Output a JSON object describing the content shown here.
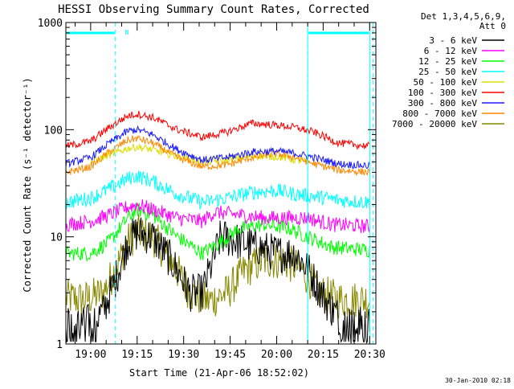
{
  "footer": {
    "timestamp": "30-Jan-2010 02:18"
  },
  "legend": {
    "header": [
      "Det 1,3,4,5,6,9,",
      "Att 0"
    ],
    "placement": "top-right, outside plot"
  },
  "chart_data": {
    "type": "line",
    "title": "HESSI Observing Summary Count Rates, Corrected",
    "xlabel": "Start Time (21-Apr-06 18:52:02)",
    "ylabel": "Corrected Count Rate (s⁻¹ detector⁻¹)",
    "yscale": "log",
    "ylim": [
      1,
      1000
    ],
    "xlim": [
      "18:52",
      "20:32"
    ],
    "x_ticks": [
      "19:00",
      "19:15",
      "19:30",
      "19:45",
      "20:00",
      "20:15",
      "20:30"
    ],
    "x_minor_minutes": 5,
    "y_ticks": [
      {
        "value": 1,
        "label": "1"
      },
      {
        "value": 10,
        "label": "10"
      },
      {
        "value": 100,
        "label": "100"
      },
      {
        "value": 1000,
        "label": "1000"
      }
    ],
    "grid": false,
    "night_markers": [
      {
        "start": "18:52",
        "end": "19:08"
      },
      {
        "start": "20:10",
        "end": "20:30"
      }
    ],
    "night_edge_color": "#00ffff",
    "saa_label": "N",
    "saa_label_time": "19:10",
    "series": [
      {
        "name": "3 - 6 keV",
        "color": "#000000",
        "x": [
          "18:52",
          "18:58",
          "19:04",
          "19:08",
          "19:12",
          "19:15",
          "19:20",
          "19:26",
          "19:32",
          "19:36",
          "19:42",
          "19:48",
          "19:54",
          "20:00",
          "20:06",
          "20:10",
          "20:16",
          "20:22",
          "20:30"
        ],
        "y": [
          1.5,
          1.5,
          2,
          4,
          9,
          11,
          10,
          6,
          3,
          3,
          10,
          9,
          8,
          7,
          7,
          5,
          2.5,
          1.5,
          1.5
        ]
      },
      {
        "name": "6 - 12 keV",
        "color": "#ff00ff",
        "x": [
          "18:52",
          "19:00",
          "19:06",
          "19:12",
          "19:15",
          "19:20",
          "19:28",
          "19:36",
          "19:40",
          "19:48",
          "19:56",
          "20:04",
          "20:10",
          "20:18",
          "20:30"
        ],
        "y": [
          13,
          14,
          16,
          19,
          20,
          18,
          15,
          14,
          17,
          16,
          15,
          15,
          15,
          13,
          12.5
        ]
      },
      {
        "name": "12 - 25 keV",
        "color": "#00ff00",
        "x": [
          "18:52",
          "19:00",
          "19:06",
          "19:12",
          "19:15",
          "19:20",
          "19:28",
          "19:36",
          "19:42",
          "19:48",
          "19:56",
          "20:04",
          "20:10",
          "20:18",
          "20:30"
        ],
        "y": [
          7,
          7,
          9,
          15,
          18,
          16,
          10,
          7,
          9,
          12,
          13,
          12,
          10,
          8,
          7.5
        ]
      },
      {
        "name": "25 - 50 keV",
        "color": "#00ffff",
        "x": [
          "18:52",
          "19:00",
          "19:06",
          "19:12",
          "19:15",
          "19:20",
          "19:28",
          "19:36",
          "19:44",
          "19:52",
          "20:00",
          "20:06",
          "20:12",
          "20:20",
          "20:30"
        ],
        "y": [
          21,
          23,
          28,
          35,
          37,
          33,
          25,
          21,
          23,
          26,
          27,
          25,
          24,
          22,
          21
        ]
      },
      {
        "name": "50 - 100 keV",
        "color": "#dddd00",
        "x": [
          "19:00",
          "19:06",
          "19:12",
          "19:15",
          "19:20",
          "19:28",
          "19:36",
          "19:44",
          "19:52",
          "20:00",
          "20:06",
          "20:10"
        ],
        "y": [
          50,
          58,
          67,
          69,
          65,
          56,
          50,
          52,
          57,
          56,
          52,
          50
        ]
      },
      {
        "name": "100 - 300 keV",
        "color": "#ff0000",
        "x": [
          "18:52",
          "19:00",
          "19:06",
          "19:12",
          "19:15",
          "19:20",
          "19:28",
          "19:36",
          "19:44",
          "19:52",
          "20:00",
          "20:06",
          "20:12",
          "20:20",
          "20:30"
        ],
        "y": [
          70,
          78,
          105,
          135,
          140,
          130,
          100,
          85,
          95,
          115,
          110,
          105,
          95,
          75,
          70
        ]
      },
      {
        "name": "300 - 800 keV",
        "color": "#1a1aff",
        "x": [
          "18:52",
          "19:00",
          "19:06",
          "19:12",
          "19:15",
          "19:20",
          "19:28",
          "19:36",
          "19:44",
          "19:52",
          "20:00",
          "20:06",
          "20:12",
          "20:20",
          "20:30"
        ],
        "y": [
          48,
          55,
          75,
          97,
          100,
          90,
          65,
          52,
          55,
          62,
          63,
          60,
          55,
          48,
          46
        ]
      },
      {
        "name": "800 - 7000 keV",
        "color": "#ff8800",
        "x": [
          "18:52",
          "19:00",
          "19:06",
          "19:12",
          "19:15",
          "19:20",
          "19:28",
          "19:36",
          "19:44",
          "19:52",
          "20:00",
          "20:06",
          "20:12",
          "20:20",
          "20:30"
        ],
        "y": [
          40,
          45,
          62,
          80,
          83,
          75,
          55,
          45,
          47,
          55,
          60,
          55,
          48,
          42,
          40
        ]
      },
      {
        "name": "7000 - 20000 keV",
        "color": "#888800",
        "x": [
          "18:52",
          "18:58",
          "19:04",
          "19:08",
          "19:12",
          "19:15",
          "19:20",
          "19:26",
          "19:32",
          "19:38",
          "19:44",
          "19:50",
          "19:56",
          "20:02",
          "20:08",
          "20:14",
          "20:20",
          "20:30"
        ],
        "y": [
          2.7,
          2.6,
          3,
          5,
          9,
          11,
          10,
          6,
          3,
          2.5,
          3,
          5,
          6,
          6,
          5,
          3,
          2.6,
          2.6
        ]
      }
    ]
  }
}
